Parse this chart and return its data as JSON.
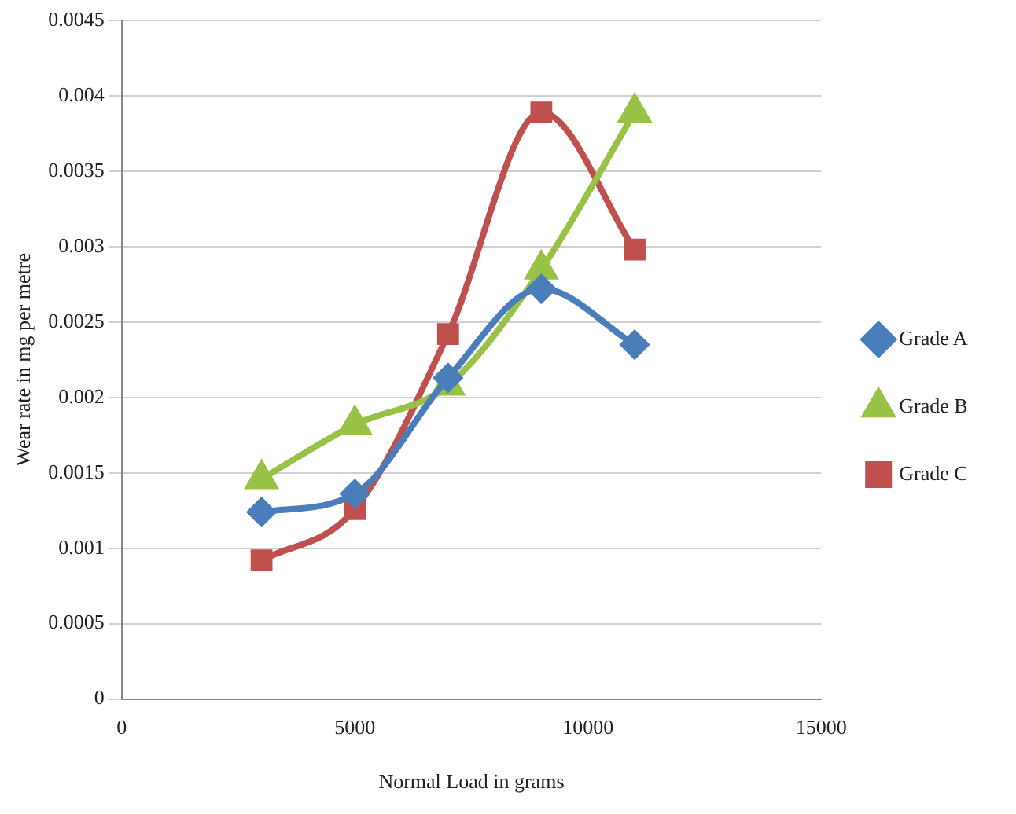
{
  "chart_data": {
    "type": "line",
    "xlabel": "Normal Load in grams",
    "ylabel": "Wear rate in mg per metre",
    "x": [
      3000,
      5000,
      7000,
      9000,
      11000
    ],
    "series": [
      {
        "name": "Grade A",
        "color": "#4a7ebb",
        "marker": "diamond",
        "values": [
          0.00124,
          0.00136,
          0.00213,
          0.00272,
          0.00235
        ]
      },
      {
        "name": "Grade B",
        "color": "#98c146",
        "marker": "triangle",
        "values": [
          0.00146,
          0.00182,
          0.00208,
          0.00285,
          0.00389
        ]
      },
      {
        "name": "Grade C",
        "color": "#c0504d",
        "marker": "square",
        "values": [
          0.00092,
          0.00126,
          0.00242,
          0.00389,
          0.00298
        ]
      }
    ],
    "xlim": [
      0,
      15000
    ],
    "xticks": [
      0,
      5000,
      10000,
      15000
    ],
    "ylim": [
      0,
      0.0045
    ],
    "yticks": [
      0,
      0.0005,
      0.001,
      0.0015,
      0.002,
      0.0025,
      0.003,
      0.0035,
      0.004,
      0.0045
    ],
    "grid": "y",
    "legend": "right"
  }
}
